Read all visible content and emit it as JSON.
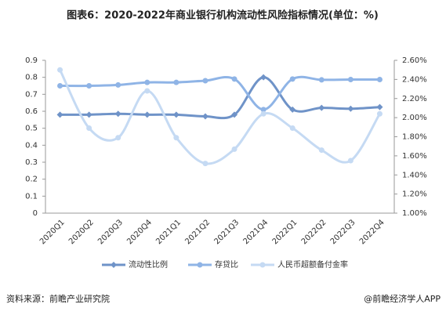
{
  "chart_data": {
    "type": "line",
    "title": "图表6：2020-2022年商业银行机构流动性风险指标情况(单位：%)",
    "categories": [
      "2020Q1",
      "2020Q2",
      "2020Q3",
      "2020Q4",
      "2021Q1",
      "2021Q2",
      "2021Q3",
      "2021Q4",
      "2022Q1",
      "2022Q2",
      "2022Q3",
      "2022Q4"
    ],
    "series": [
      {
        "name": "流动性比例",
        "color": "#6f93c8",
        "marker": "diamond",
        "values": [
          0.58,
          0.58,
          0.585,
          0.58,
          0.58,
          0.57,
          0.58,
          0.8,
          0.61,
          0.62,
          0.615,
          0.625
        ]
      },
      {
        "name": "存贷比",
        "color": "#8fb4e6",
        "marker": "circle",
        "values": [
          0.75,
          0.75,
          0.755,
          0.77,
          0.77,
          0.78,
          0.79,
          0.61,
          0.79,
          0.785,
          0.787,
          0.787
        ]
      },
      {
        "name": "人民币超额备付金率",
        "color": "#c5daf3",
        "marker": "circle",
        "axis": "y2",
        "values": [
          2.5,
          1.89,
          1.79,
          2.28,
          1.79,
          1.52,
          1.67,
          2.04,
          1.89,
          1.66,
          1.55,
          2.04
        ]
      }
    ],
    "ylim": [
      0,
      0.9
    ],
    "yticks": [
      0,
      0.1,
      0.2,
      0.3,
      0.4,
      0.5,
      0.6,
      0.7,
      0.8,
      0.9
    ],
    "y2lim": [
      1.0,
      2.6
    ],
    "y2ticks": [
      {
        "value": 1.0,
        "label": "1.00%"
      },
      {
        "value": 1.2,
        "label": "1.20%"
      },
      {
        "value": 1.4,
        "label": "1.40%"
      },
      {
        "value": 1.6,
        "label": "1.60%"
      },
      {
        "value": 1.8,
        "label": "1.80%"
      },
      {
        "value": 2.0,
        "label": "2.00%"
      },
      {
        "value": 2.2,
        "label": "2.20%"
      },
      {
        "value": 2.4,
        "label": "2.40%"
      },
      {
        "value": 2.6,
        "label": "2.60%"
      }
    ],
    "legend": "bottom",
    "source": "资料来源：前瞻产业研究院",
    "credit": "@前瞻经济学人APP"
  }
}
